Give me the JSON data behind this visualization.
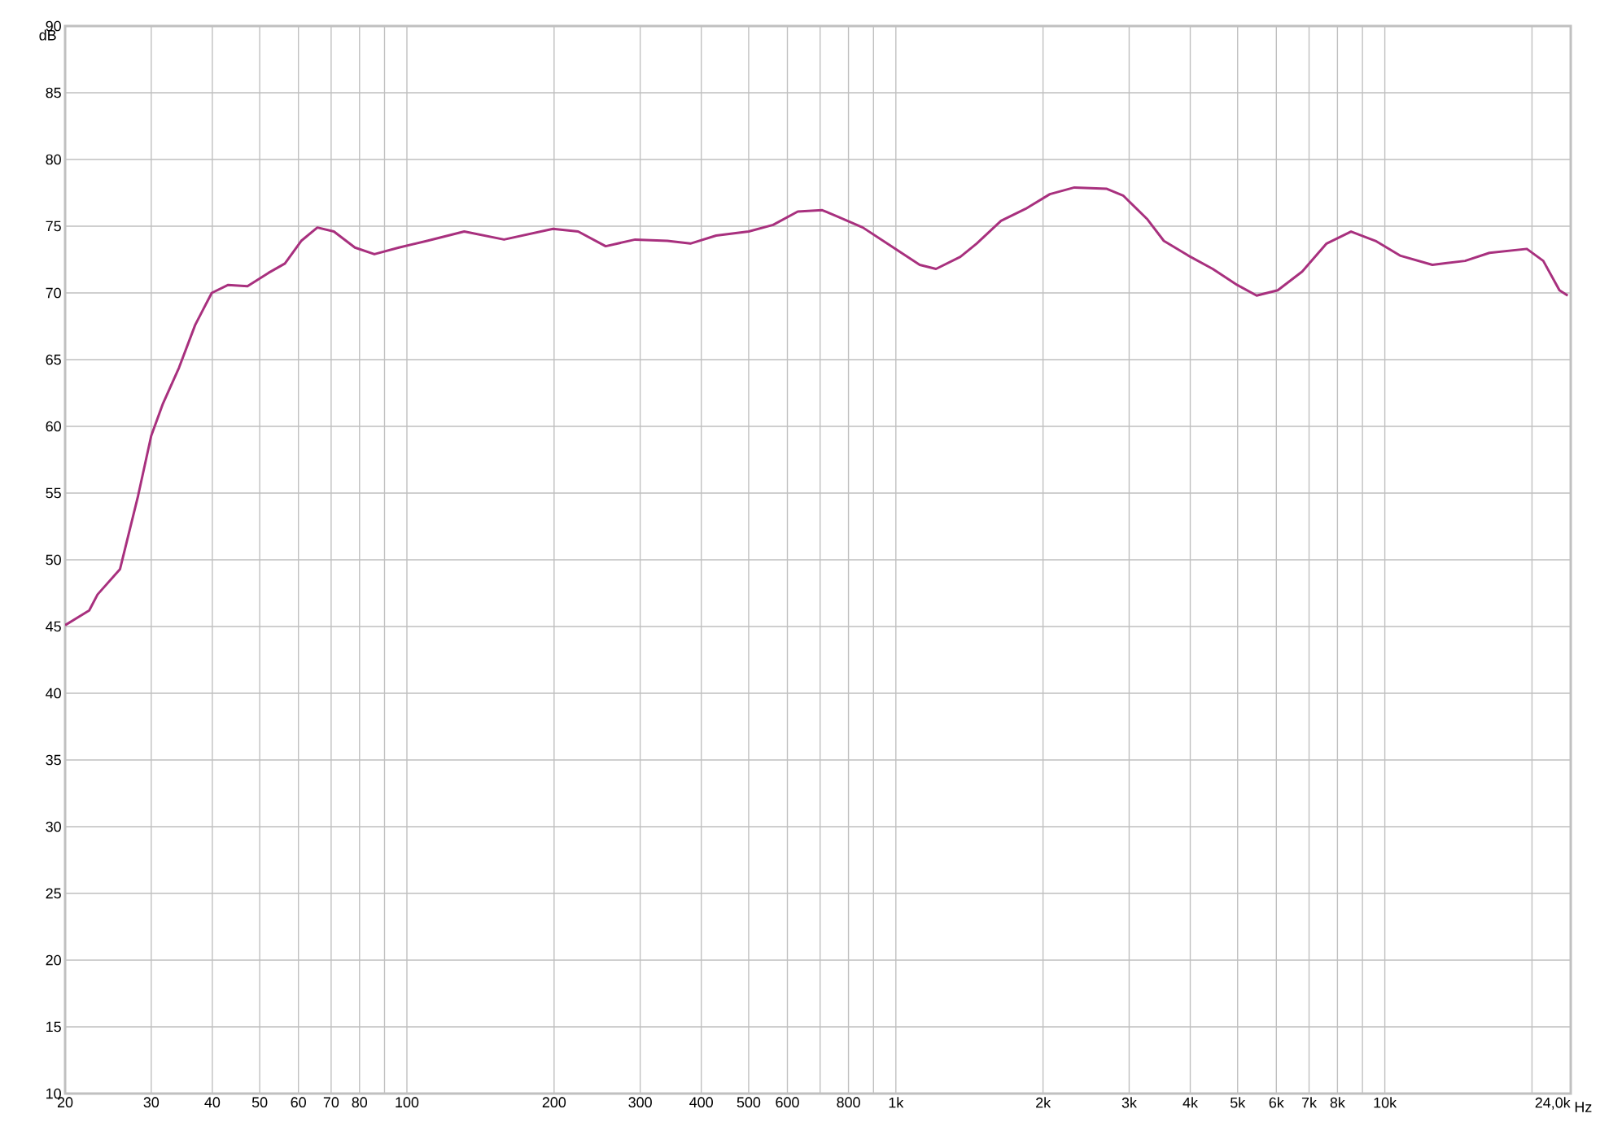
{
  "chart_data": {
    "type": "line",
    "xlabel": "Hz",
    "ylabel": "dB",
    "log": "x",
    "grid": true,
    "marker": "none",
    "line_style": "solid",
    "xlim": [
      20,
      24000
    ],
    "ylim": [
      10,
      90
    ],
    "xticks": [
      20,
      30,
      40,
      50,
      60,
      70,
      80,
      {
        "value": 90,
        "label": null
      },
      100,
      200,
      300,
      400,
      500,
      600,
      {
        "value": 700,
        "label": null
      },
      800,
      {
        "value": 900,
        "label": null
      },
      {
        "value": 1000,
        "label": "1k"
      },
      {
        "value": 2000,
        "label": "2k"
      },
      {
        "value": 3000,
        "label": "3k"
      },
      {
        "value": 4000,
        "label": "4k"
      },
      {
        "value": 5000,
        "label": "5k"
      },
      {
        "value": 6000,
        "label": "6k"
      },
      {
        "value": 7000,
        "label": "7k"
      },
      {
        "value": 8000,
        "label": "8k"
      },
      {
        "value": 9000,
        "label": null
      },
      {
        "value": 10000,
        "label": "10k"
      },
      {
        "value": 20000,
        "label": null
      },
      {
        "value": 24000,
        "label": "24,0k"
      }
    ],
    "yticks": [
      10,
      15,
      20,
      25,
      30,
      35,
      40,
      45,
      50,
      55,
      60,
      65,
      70,
      75,
      80,
      85,
      90
    ],
    "series": [
      {
        "color": "#a8307e",
        "x": [
          20,
          22.4,
          23.3,
          25.9,
          28.2,
          30,
          31.7,
          34.2,
          36.9,
          39.9,
          43.1,
          47.2,
          52.1,
          56.3,
          60.8,
          65.6,
          70.9,
          78.3,
          85.8,
          96.3,
          110,
          131,
          158,
          199,
          224,
          255,
          293,
          341,
          380,
          429,
          500,
          561,
          630,
          707,
          763,
          856,
          960,
          1119,
          1208,
          1355,
          1463,
          1641,
          1842,
          2065,
          2318,
          2701,
          2916,
          3272,
          3532,
          3963,
          4447,
          4989,
          5469,
          6040,
          6777,
          7602,
          8530,
          9571,
          10740,
          12510,
          14590,
          16370,
          19520,
          21090,
          22760,
          23660
        ],
        "values": [
          45.1,
          46.2,
          47.4,
          49.3,
          54.8,
          59.3,
          61.7,
          64.4,
          67.6,
          70.0,
          70.6,
          70.5,
          71.5,
          72.2,
          73.9,
          74.9,
          74.6,
          73.4,
          72.9,
          73.4,
          73.9,
          74.6,
          74.0,
          74.8,
          74.6,
          73.5,
          74.0,
          73.9,
          73.7,
          74.3,
          74.6,
          75.1,
          76.1,
          76.2,
          75.7,
          74.9,
          73.7,
          72.1,
          71.8,
          72.7,
          73.7,
          75.4,
          76.3,
          77.4,
          77.9,
          77.8,
          77.3,
          75.5,
          73.9,
          72.8,
          71.8,
          70.6,
          69.8,
          70.2,
          71.6,
          73.7,
          74.6,
          73.9,
          72.8,
          72.1,
          72.4,
          73.0,
          73.3,
          72.4,
          70.2,
          69.8
        ]
      }
    ]
  }
}
